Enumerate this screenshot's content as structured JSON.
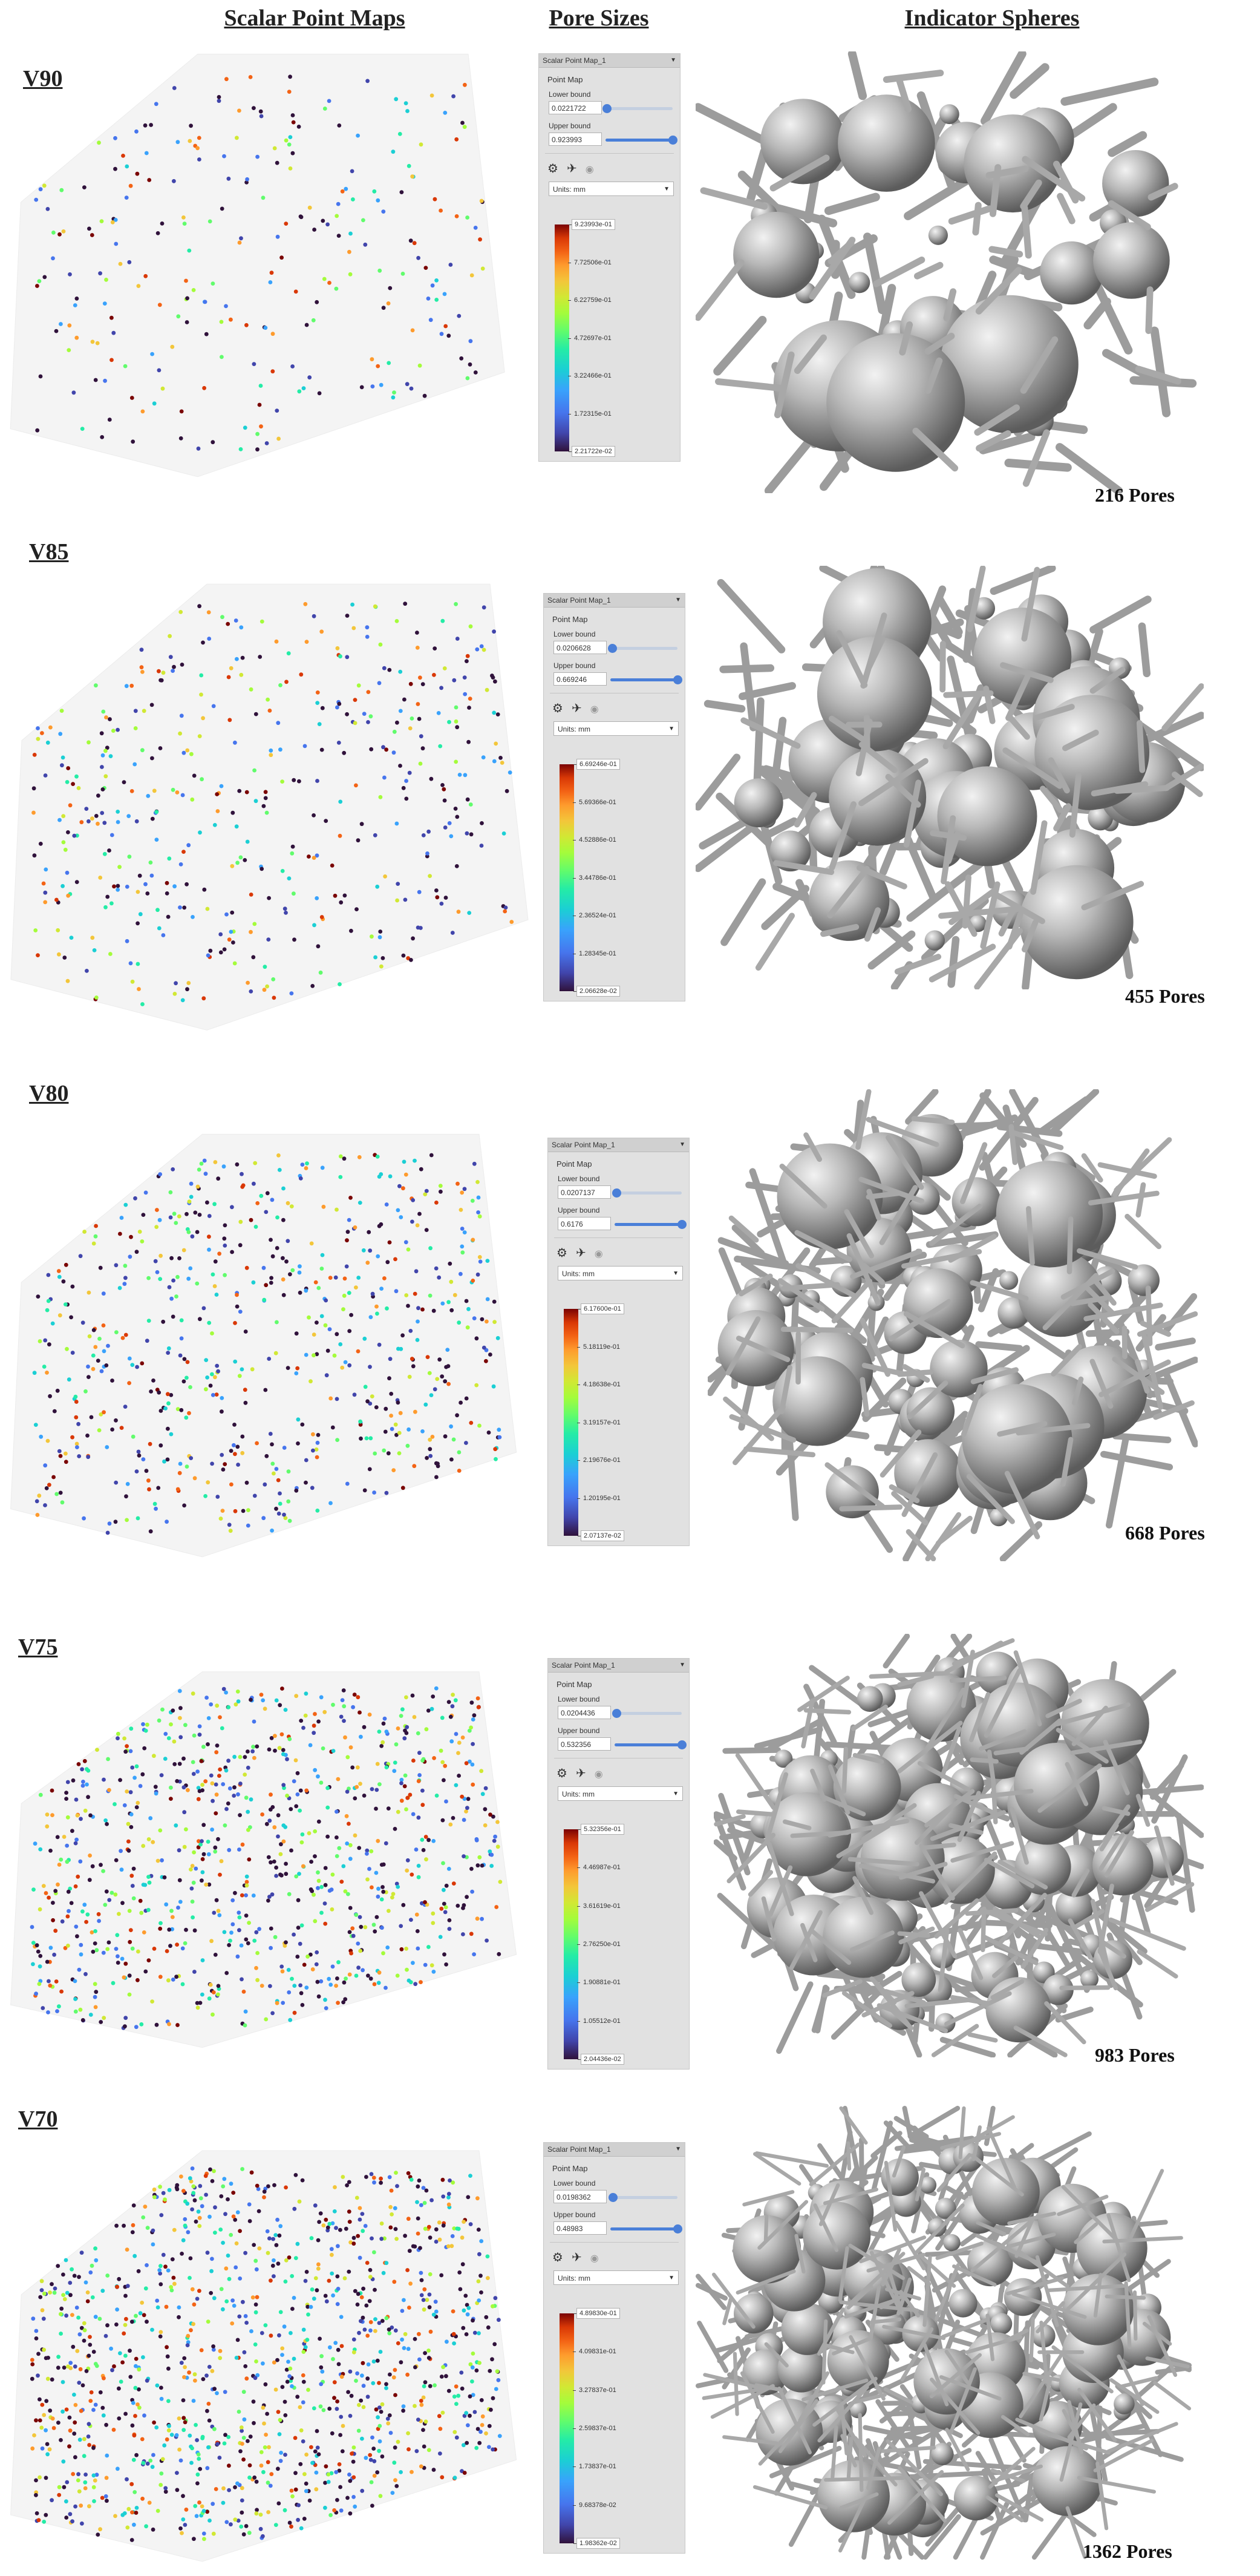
{
  "headers": {
    "scalar_maps": "Scalar Point Maps",
    "pore_sizes": "Pore Sizes",
    "indicator_spheres": "Indicator Spheres"
  },
  "colormap_colors": [
    "#30123b",
    "#4145ab",
    "#4675ed",
    "#39a2fc",
    "#1bcfd4",
    "#24eca6",
    "#61fc6c",
    "#a4fc3b",
    "#d1e834",
    "#f3c63a",
    "#fe9b2d",
    "#f36315",
    "#d93806",
    "#7a0403"
  ],
  "sphere_color": "#b8b8b8",
  "strut_color": "#9c9c9c",
  "panel_common": {
    "title": "Scalar Point Map_1",
    "section": "Point Map",
    "lower_label": "Lower bound",
    "upper_label": "Upper bound",
    "units_label": "Units: mm",
    "icons": [
      "gear-icon",
      "pin-icon",
      "eye-icon"
    ]
  },
  "rows": [
    {
      "label": "V90",
      "pores": "216 Pores",
      "lower": "0.0221722",
      "upper": "0.923993",
      "lower_fraction": 0.02,
      "upper_fraction": 1.0,
      "ticks": [
        "9.23993e-01",
        "7.72506e-01",
        "6.22759e-01",
        "4.72697e-01",
        "3.22466e-01",
        "1.72315e-01",
        "2.21722e-02"
      ],
      "point_count": 260,
      "sphere_count": 30,
      "strut_count": 60
    },
    {
      "label": "V85",
      "pores": "455 Pores",
      "lower": "0.0206628",
      "upper": "0.669246",
      "lower_fraction": 0.03,
      "upper_fraction": 1.0,
      "ticks": [
        "6.69246e-01",
        "5.69366e-01",
        "4.52886e-01",
        "3.44786e-01",
        "2.36524e-01",
        "1.28345e-01",
        "2.06628e-02"
      ],
      "point_count": 460,
      "sphere_count": 55,
      "strut_count": 100
    },
    {
      "label": "V80",
      "pores": "668 Pores",
      "lower": "0.0207137",
      "upper": "0.6176",
      "lower_fraction": 0.03,
      "upper_fraction": 1.0,
      "ticks": [
        "6.17600e-01",
        "5.18119e-01",
        "4.18638e-01",
        "3.19157e-01",
        "2.19676e-01",
        "1.20195e-01",
        "2.07137e-02"
      ],
      "point_count": 650,
      "sphere_count": 75,
      "strut_count": 150
    },
    {
      "label": "V75",
      "pores": "983 Pores",
      "lower": "0.0204436",
      "upper": "0.532356",
      "lower_fraction": 0.03,
      "upper_fraction": 1.0,
      "ticks": [
        "5.32356e-01",
        "4.46987e-01",
        "3.61619e-01",
        "2.76250e-01",
        "1.90881e-01",
        "1.05512e-01",
        "2.04436e-02"
      ],
      "point_count": 900,
      "sphere_count": 95,
      "strut_count": 200
    },
    {
      "label": "V70",
      "pores": "1362 Pores",
      "lower": "0.0198362",
      "upper": "0.48983",
      "lower_fraction": 0.04,
      "upper_fraction": 1.0,
      "ticks": [
        "4.89830e-01",
        "4.09831e-01",
        "3.27837e-01",
        "2.59837e-01",
        "1.73837e-01",
        "9.68378e-02",
        "1.98362e-02"
      ],
      "point_count": 1150,
      "sphere_count": 115,
      "strut_count": 260
    }
  ]
}
